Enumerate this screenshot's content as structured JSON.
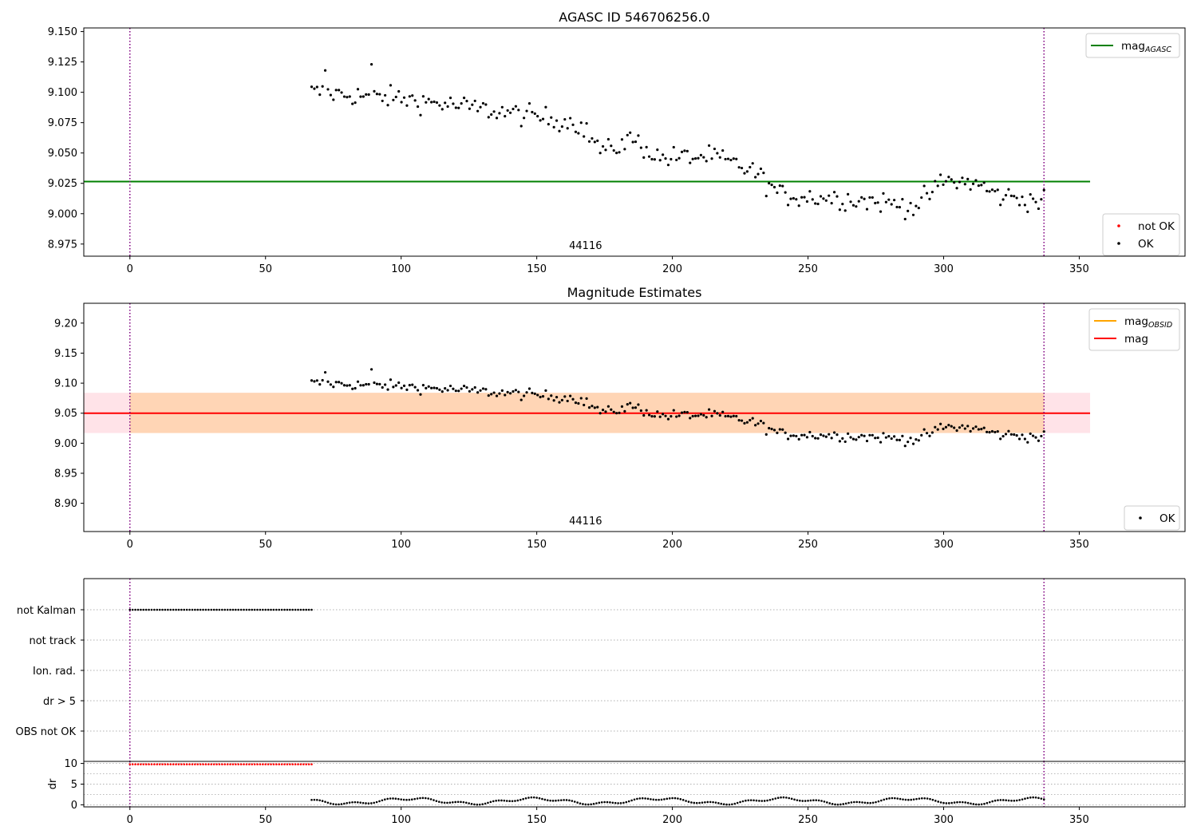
{
  "chart_data": [
    {
      "type": "scatter",
      "title": "AGASC ID 546706256.0",
      "xlim": [
        -17,
        389
      ],
      "ylim": [
        8.965,
        9.153
      ],
      "xticks": [
        0,
        50,
        100,
        150,
        200,
        250,
        300,
        350
      ],
      "yticks": [
        8.975,
        9.0,
        9.025,
        9.05,
        9.075,
        9.1,
        9.125,
        9.15
      ],
      "ytick_labels": [
        "8.975",
        "9.000",
        "9.025",
        "9.050",
        "9.075",
        "9.100",
        "9.125",
        "9.150"
      ],
      "obsid_label": "44116",
      "obsid_label_x": 168,
      "boundaries_x": [
        0,
        337
      ],
      "hlines": [
        {
          "name": "mag",
          "subscript": "AGASC",
          "y": 9.0265,
          "x_range": [
            -17,
            354
          ],
          "color": "#008000"
        }
      ],
      "legend_top": {
        "placement": "top-right",
        "entries": [
          {
            "label": "mag",
            "subscript": "AGASC",
            "color": "#008000"
          }
        ]
      },
      "legend_bottom": {
        "placement": "bottom-right",
        "entries": [
          {
            "label": "not OK",
            "color": "#ff0000"
          },
          {
            "label": "OK",
            "color": "#000000"
          }
        ]
      },
      "series": [
        {
          "name": "OK",
          "color": "#000000",
          "x_range": [
            67,
            337
          ],
          "n": 270
        }
      ]
    },
    {
      "type": "scatter",
      "title": "Magnitude Estimates",
      "xlim": [
        -17,
        389
      ],
      "ylim": [
        8.853,
        9.233
      ],
      "xticks": [
        0,
        50,
        100,
        150,
        200,
        250,
        300,
        350
      ],
      "yticks": [
        8.9,
        8.95,
        9.0,
        9.05,
        9.1,
        9.15,
        9.2
      ],
      "ytick_labels": [
        "8.90",
        "8.95",
        "9.00",
        "9.05",
        "9.10",
        "9.15",
        "9.20"
      ],
      "obsid_label": "44116",
      "obsid_label_x": 168,
      "boundaries_x": [
        0,
        337
      ],
      "hlines": [
        {
          "name": "mag",
          "y": 9.05,
          "x_range": [
            -17,
            354
          ],
          "color": "#ff0000"
        }
      ],
      "bands": [
        {
          "y_range": [
            9.017,
            9.084
          ],
          "x_range": [
            -17,
            354
          ],
          "color": "#ffc0cb",
          "opacity": 0.45
        },
        {
          "y_range": [
            9.017,
            9.084
          ],
          "x_range": [
            0,
            337
          ],
          "color": "#ffa500",
          "opacity": 0.22
        }
      ],
      "legend_top": {
        "placement": "top-right",
        "entries": [
          {
            "label": "mag",
            "subscript": "OBSID",
            "color": "#ffa500"
          },
          {
            "label": "mag",
            "color": "#ff0000"
          }
        ]
      },
      "legend_bottom": {
        "placement": "bottom-right",
        "entries": [
          {
            "label": "OK",
            "color": "#000000"
          }
        ]
      },
      "series": [
        {
          "name": "OK",
          "color": "#000000",
          "x_range": [
            67,
            337
          ],
          "n": 270
        }
      ]
    },
    {
      "type": "scatter",
      "xlim": [
        -17,
        389
      ],
      "categories": [
        "not Kalman",
        "not track",
        "Ion. rad.",
        "dr > 5",
        "OBS not OK"
      ],
      "boundaries_x": [
        0,
        337
      ],
      "series": [
        {
          "name": "not Kalman",
          "color": "#000000",
          "x_range": [
            0,
            67
          ]
        }
      ]
    },
    {
      "type": "scatter",
      "xlim": [
        -17,
        389
      ],
      "ylim": [
        -0.5,
        10.5
      ],
      "xticks": [
        0,
        50,
        100,
        150,
        200,
        250,
        300,
        350
      ],
      "yticks": [
        0,
        5,
        10
      ],
      "ytick_labels": [
        "0",
        "5",
        "10"
      ],
      "ylabel": "dr",
      "boundaries_x": [
        0,
        337
      ],
      "series": [
        {
          "name": "not OK",
          "color": "#ff0000",
          "x_range": [
            0,
            67
          ],
          "y": 9.8
        },
        {
          "name": "OK",
          "color": "#000000",
          "x_range": [
            67,
            337
          ]
        }
      ]
    }
  ]
}
